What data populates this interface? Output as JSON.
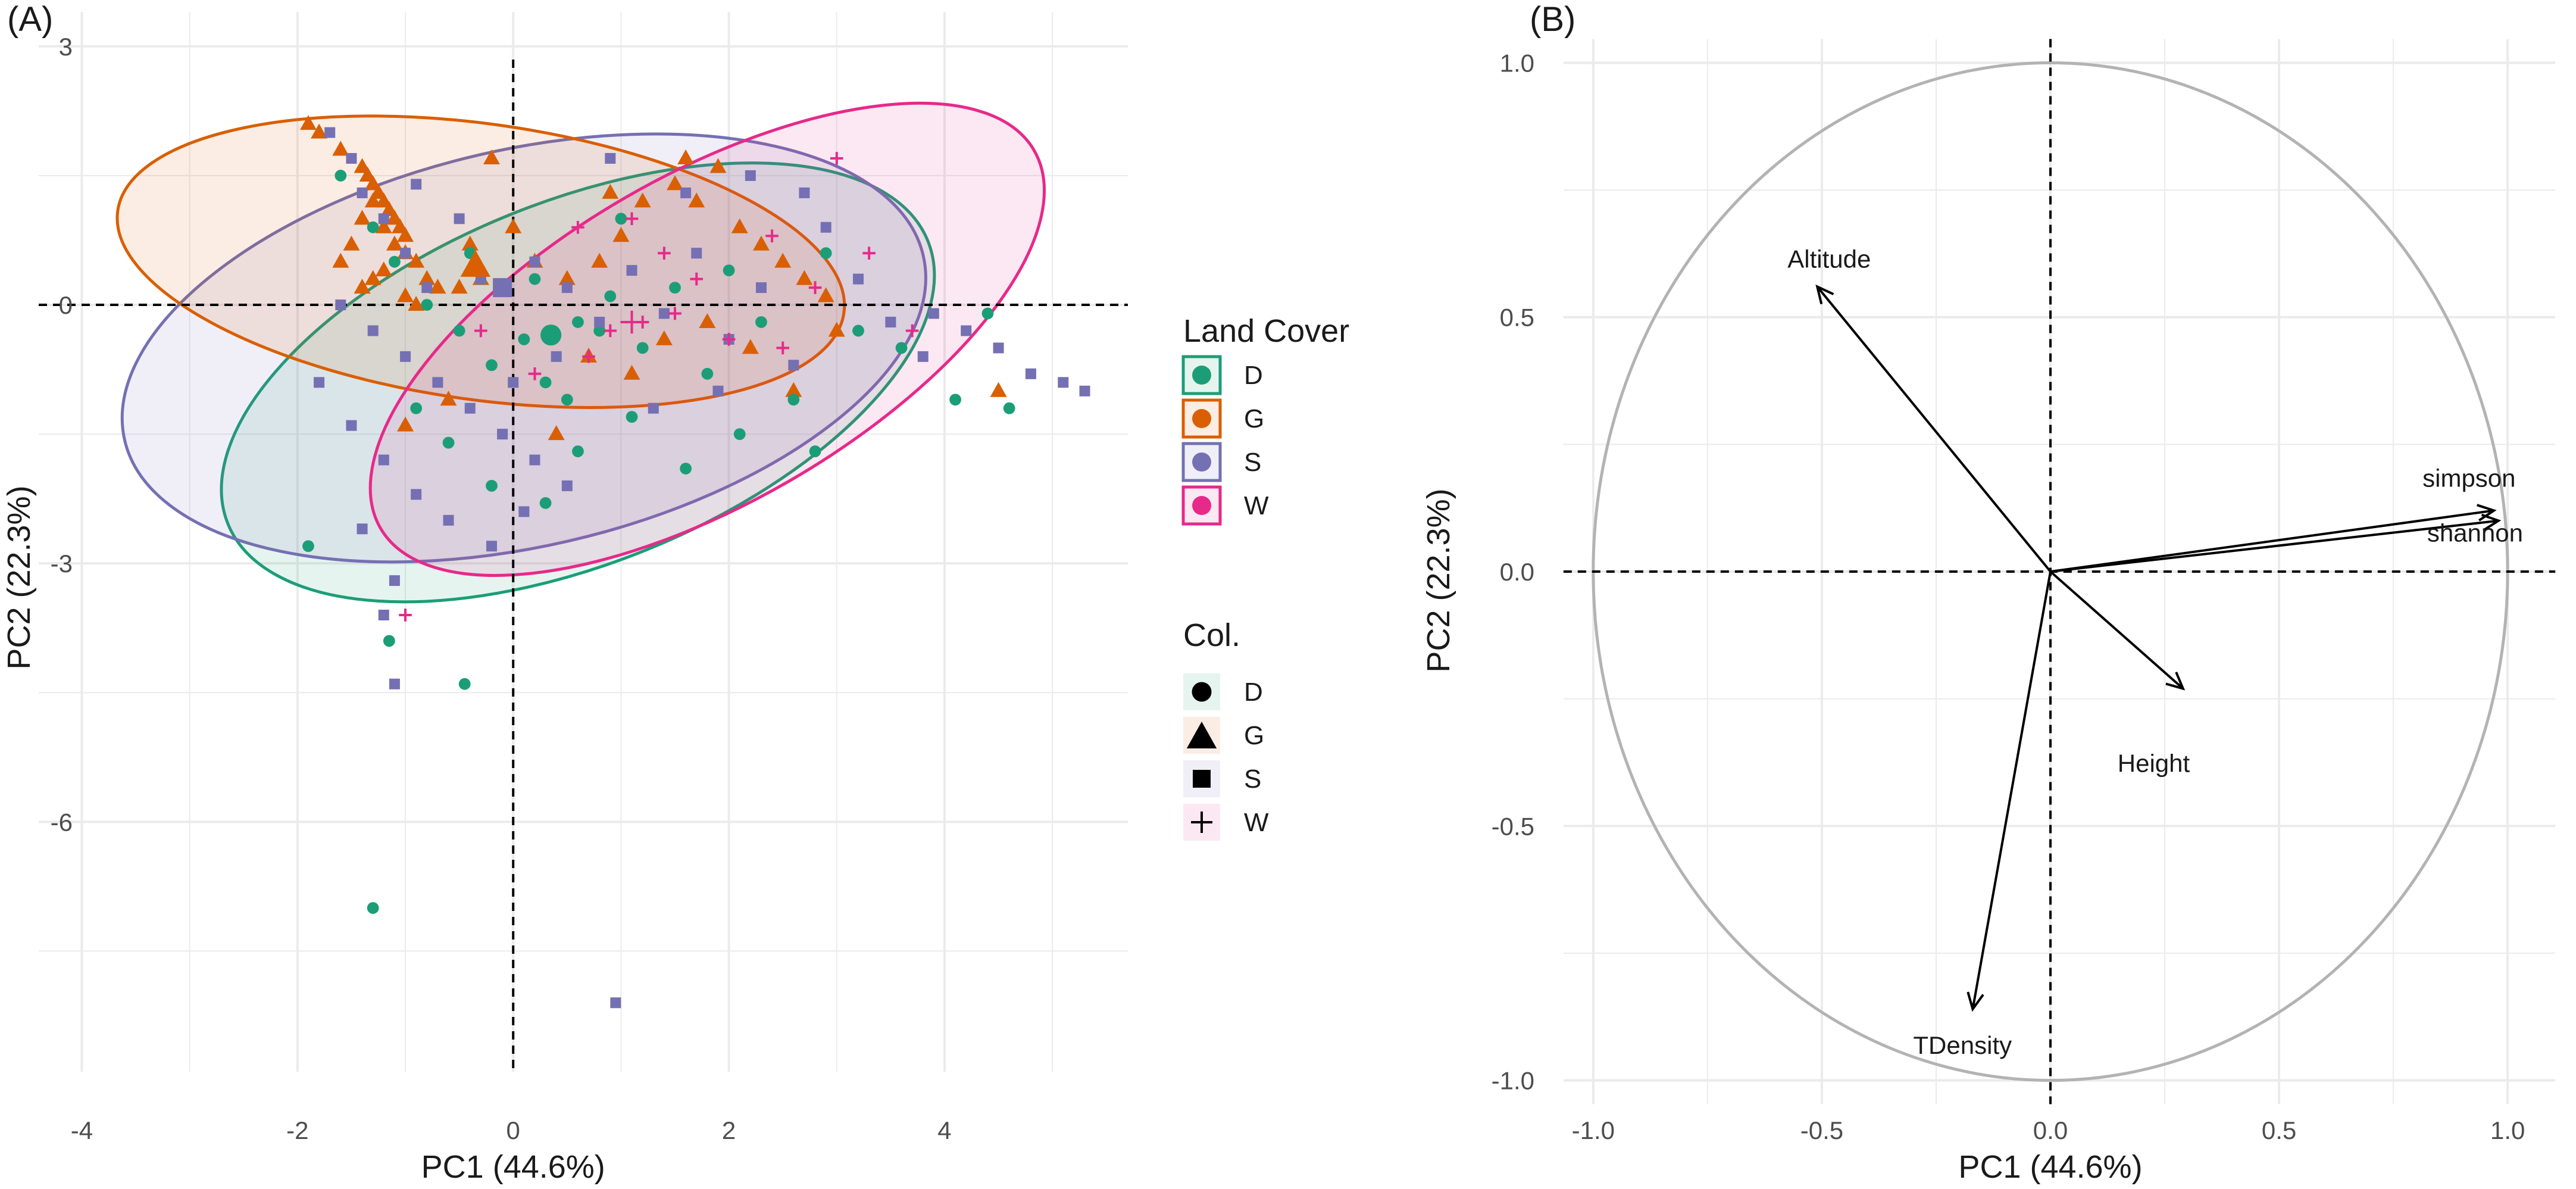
{
  "chart_data": [
    {
      "panel": "(A)",
      "type": "scatter",
      "xlabel": "PC1 (44.6%)",
      "ylabel": "PC2 (22.3%)",
      "xlim": [
        -4.4,
        5.7
      ],
      "ylim": [
        -8.9,
        3.4
      ],
      "xticks": [
        -4,
        -2,
        0,
        2,
        4
      ],
      "yticks": [
        3,
        0,
        -3,
        -6
      ],
      "xtick_labels": [
        "-4",
        "-2",
        "0",
        "2",
        "4"
      ],
      "ytick_labels": [
        "3",
        "0",
        "-3",
        "-6"
      ],
      "grid": true,
      "reference_lines": {
        "x": 0,
        "y": 0,
        "style": "dashed"
      },
      "colors": {
        "D": "#1b9e77",
        "G": "#d95f02",
        "S": "#7570b3",
        "W": "#e7298a"
      },
      "shapes": {
        "D": "circle",
        "G": "triangle",
        "S": "square",
        "W": "plus"
      },
      "legend_land_cover": {
        "title": "Land Cover",
        "items": [
          "D",
          "G",
          "S",
          "W"
        ]
      },
      "legend_col": {
        "title": "Col.",
        "items": [
          "D",
          "G",
          "S",
          "W"
        ]
      },
      "ellipses": [
        {
          "group": "D",
          "center": [
            0.6,
            -0.9
          ],
          "semi_axes": [
            3.5,
            2.1
          ],
          "angle_deg": 22
        },
        {
          "group": "S",
          "center": [
            0.1,
            -0.5
          ],
          "semi_axes": [
            3.8,
            2.3
          ],
          "angle_deg": 13
        },
        {
          "group": "G",
          "center": [
            -0.3,
            0.5
          ],
          "semi_axes": [
            3.4,
            1.6
          ],
          "angle_deg": -8
        },
        {
          "group": "W",
          "center": [
            1.8,
            -0.4
          ],
          "semi_axes": [
            3.5,
            1.9
          ],
          "angle_deg": 30
        }
      ],
      "centroids": [
        {
          "group": "D",
          "x": 0.35,
          "y": -0.35
        },
        {
          "group": "G",
          "x": -0.35,
          "y": 0.45
        },
        {
          "group": "S",
          "x": -0.1,
          "y": 0.2
        },
        {
          "group": "W",
          "x": 1.1,
          "y": -0.2
        }
      ],
      "series": [
        {
          "name": "G",
          "points": [
            [
              -1.9,
              2.1
            ],
            [
              -1.8,
              2.0
            ],
            [
              -1.6,
              1.8
            ],
            [
              -1.4,
              1.6
            ],
            [
              -1.35,
              1.5
            ],
            [
              -1.3,
              1.4
            ],
            [
              -1.25,
              1.3
            ],
            [
              -1.2,
              1.2
            ],
            [
              -1.15,
              1.1
            ],
            [
              -1.1,
              1.0
            ],
            [
              -1.05,
              0.9
            ],
            [
              -1.0,
              0.8
            ],
            [
              -1.3,
              1.2
            ],
            [
              -1.4,
              1.0
            ],
            [
              -1.2,
              0.9
            ],
            [
              -1.1,
              0.7
            ],
            [
              -1.0,
              0.6
            ],
            [
              -0.9,
              0.5
            ],
            [
              -1.5,
              0.7
            ],
            [
              -1.6,
              0.5
            ],
            [
              -1.3,
              0.3
            ],
            [
              -1.2,
              0.4
            ],
            [
              -0.8,
              0.3
            ],
            [
              -0.7,
              0.2
            ],
            [
              -1.4,
              0.2
            ],
            [
              -1.0,
              0.1
            ],
            [
              -0.9,
              0.0
            ],
            [
              -0.5,
              0.2
            ],
            [
              -0.3,
              0.3
            ],
            [
              -0.2,
              1.7
            ],
            [
              0.0,
              0.9
            ],
            [
              0.2,
              0.5
            ],
            [
              0.5,
              0.3
            ],
            [
              0.8,
              0.5
            ],
            [
              1.0,
              0.8
            ],
            [
              1.2,
              1.2
            ],
            [
              1.5,
              1.4
            ],
            [
              1.7,
              1.2
            ],
            [
              1.9,
              1.6
            ],
            [
              2.1,
              0.9
            ],
            [
              2.3,
              0.7
            ],
            [
              2.5,
              0.5
            ],
            [
              2.7,
              0.3
            ],
            [
              2.9,
              0.1
            ],
            [
              3.0,
              -0.3
            ],
            [
              0.7,
              -0.6
            ],
            [
              1.1,
              -0.8
            ],
            [
              1.4,
              -0.4
            ],
            [
              1.8,
              -0.2
            ],
            [
              2.2,
              -0.5
            ],
            [
              2.6,
              -1.0
            ],
            [
              -0.6,
              -1.1
            ],
            [
              0.4,
              -1.5
            ],
            [
              4.5,
              -1.0
            ],
            [
              -1.0,
              -1.4
            ],
            [
              1.6,
              1.7
            ],
            [
              0.9,
              1.3
            ],
            [
              -0.4,
              0.7
            ]
          ]
        },
        {
          "name": "D",
          "points": [
            [
              -1.6,
              1.5
            ],
            [
              -1.3,
              0.9
            ],
            [
              -1.1,
              0.5
            ],
            [
              -0.8,
              0.0
            ],
            [
              -0.5,
              -0.3
            ],
            [
              -0.2,
              -0.7
            ],
            [
              0.1,
              -0.4
            ],
            [
              0.3,
              -0.9
            ],
            [
              0.6,
              -0.2
            ],
            [
              0.9,
              0.1
            ],
            [
              1.2,
              -0.5
            ],
            [
              1.5,
              0.2
            ],
            [
              1.8,
              -0.8
            ],
            [
              2.0,
              0.4
            ],
            [
              2.3,
              -0.2
            ],
            [
              2.6,
              -1.1
            ],
            [
              2.9,
              0.6
            ],
            [
              3.2,
              -0.3
            ],
            [
              -0.6,
              -1.6
            ],
            [
              -0.2,
              -2.1
            ],
            [
              0.3,
              -2.3
            ],
            [
              0.6,
              -1.7
            ],
            [
              1.1,
              -1.3
            ],
            [
              1.6,
              -1.9
            ],
            [
              2.1,
              -1.5
            ],
            [
              -1.9,
              -2.8
            ],
            [
              -1.15,
              -3.9
            ],
            [
              -0.45,
              -4.4
            ],
            [
              -1.3,
              -7.0
            ],
            [
              4.4,
              -0.1
            ],
            [
              4.6,
              -1.2
            ],
            [
              4.1,
              -1.1
            ],
            [
              0.8,
              -0.3
            ],
            [
              0.2,
              0.3
            ],
            [
              -0.4,
              0.6
            ],
            [
              1.0,
              1.0
            ],
            [
              3.6,
              -0.5
            ],
            [
              2.8,
              -1.7
            ],
            [
              -0.9,
              -1.2
            ],
            [
              0.5,
              -1.1
            ]
          ]
        },
        {
          "name": "S",
          "points": [
            [
              -1.7,
              2.0
            ],
            [
              -1.5,
              1.7
            ],
            [
              -1.4,
              1.3
            ],
            [
              -1.2,
              1.0
            ],
            [
              -1.0,
              0.6
            ],
            [
              -0.8,
              0.2
            ],
            [
              -1.6,
              0.0
            ],
            [
              -1.3,
              -0.3
            ],
            [
              -1.0,
              -0.6
            ],
            [
              -0.7,
              -0.9
            ],
            [
              -0.4,
              -1.2
            ],
            [
              -0.1,
              -1.5
            ],
            [
              0.2,
              -1.8
            ],
            [
              0.5,
              -2.1
            ],
            [
              -1.8,
              -0.9
            ],
            [
              -1.5,
              -1.4
            ],
            [
              -1.2,
              -1.8
            ],
            [
              -0.9,
              -2.2
            ],
            [
              -0.6,
              -2.5
            ],
            [
              -1.4,
              -2.6
            ],
            [
              -1.1,
              -3.2
            ],
            [
              -1.2,
              -3.6
            ],
            [
              -1.1,
              -4.4
            ],
            [
              0.2,
              0.5
            ],
            [
              0.5,
              0.2
            ],
            [
              0.8,
              -0.2
            ],
            [
              1.1,
              0.4
            ],
            [
              1.4,
              -0.1
            ],
            [
              1.7,
              0.6
            ],
            [
              2.0,
              -0.4
            ],
            [
              2.3,
              0.2
            ],
            [
              2.6,
              -0.7
            ],
            [
              2.9,
              0.9
            ],
            [
              3.2,
              0.3
            ],
            [
              3.5,
              -0.2
            ],
            [
              3.8,
              -0.6
            ],
            [
              4.2,
              -0.3
            ],
            [
              4.5,
              -0.5
            ],
            [
              4.8,
              -0.8
            ],
            [
              5.1,
              -0.9
            ],
            [
              5.3,
              -1.0
            ],
            [
              0.9,
              1.7
            ],
            [
              1.6,
              1.3
            ],
            [
              2.2,
              1.5
            ],
            [
              2.7,
              1.3
            ],
            [
              0.95,
              -8.1
            ],
            [
              0.0,
              -0.9
            ],
            [
              -0.3,
              0.3
            ],
            [
              0.4,
              -0.6
            ],
            [
              1.3,
              -1.2
            ],
            [
              1.9,
              -1.0
            ],
            [
              -0.5,
              1.0
            ],
            [
              -0.9,
              1.4
            ],
            [
              3.9,
              -0.1
            ],
            [
              0.1,
              -2.4
            ],
            [
              -0.2,
              -2.8
            ]
          ]
        },
        {
          "name": "W",
          "points": [
            [
              -0.3,
              -0.3
            ],
            [
              0.2,
              -0.8
            ],
            [
              0.6,
              0.9
            ],
            [
              0.9,
              -0.3
            ],
            [
              1.2,
              -0.2
            ],
            [
              1.4,
              0.6
            ],
            [
              1.7,
              0.3
            ],
            [
              2.0,
              -0.4
            ],
            [
              2.4,
              0.8
            ],
            [
              2.8,
              0.2
            ],
            [
              3.0,
              1.7
            ],
            [
              3.3,
              0.6
            ],
            [
              3.7,
              -0.3
            ],
            [
              0.7,
              -0.6
            ],
            [
              1.5,
              -0.1
            ],
            [
              -1.0,
              -3.6
            ],
            [
              2.5,
              -0.5
            ],
            [
              1.1,
              1.0
            ]
          ]
        }
      ]
    },
    {
      "panel": "(B)",
      "type": "scatter",
      "subtype": "correlation-circle",
      "xlabel": "PC1 (44.6%)",
      "ylabel": "PC2 (22.3%)",
      "xlim": [
        -1.1,
        1.1
      ],
      "ylim": [
        -1.1,
        1.1
      ],
      "xticks": [
        -1.0,
        -0.5,
        0.0,
        0.5,
        1.0
      ],
      "yticks": [
        1.0,
        0.5,
        0.0,
        -0.5,
        -1.0
      ],
      "xtick_labels": [
        "-1.0",
        "-0.5",
        "0.0",
        "0.5",
        "1.0"
      ],
      "ytick_labels": [
        "1.0",
        "0.5",
        "0.0",
        "-0.5",
        "-1.0"
      ],
      "grid": true,
      "unit_circle": true,
      "reference_lines": {
        "x": 0,
        "y": 0,
        "style": "dashed"
      },
      "vectors": [
        {
          "name": "Altitude",
          "x": -0.51,
          "y": 0.56
        },
        {
          "name": "simpson",
          "x": 0.97,
          "y": 0.12
        },
        {
          "name": "shannon",
          "x": 0.98,
          "y": 0.1
        },
        {
          "name": "Height",
          "x": 0.29,
          "y": -0.23
        },
        {
          "name": "TDensity",
          "x": -0.17,
          "y": -0.86
        }
      ]
    }
  ]
}
